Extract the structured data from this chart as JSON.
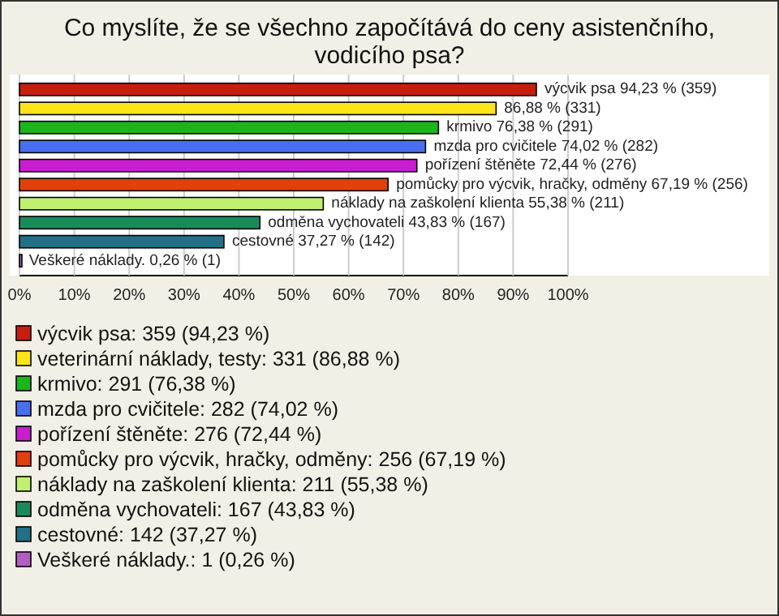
{
  "chart_data": {
    "type": "bar",
    "orientation": "horizontal",
    "title": "Co myslíte, že se všechno započítává do ceny asistenčního, vodicího psa?",
    "categories": [
      null,
      null,
      null,
      null,
      null,
      null,
      null,
      null,
      null,
      null
    ],
    "series": [
      {
        "name": "výcvik psa: 359 (94,23 %)",
        "color": "#c81e0e",
        "values": [
          94.23,
          null,
          null,
          null,
          null,
          null,
          null,
          null,
          null,
          null
        ],
        "value_labels": [
          "výcvik psa 94,23 % (359)",
          null,
          null,
          null,
          null,
          null,
          null,
          null,
          null,
          null
        ]
      },
      {
        "name": "veterinární náklady, testy: 331 (86,88 %)",
        "color": "#ffe41a",
        "values": [
          null,
          86.88,
          null,
          null,
          null,
          null,
          null,
          null,
          null,
          null
        ],
        "value_labels": [
          null,
          "86,88 % (331)",
          null,
          null,
          null,
          null,
          null,
          null,
          null,
          null
        ]
      },
      {
        "name": "krmivo: 291 (76,38 %)",
        "color": "#1cb51c",
        "values": [
          null,
          null,
          76.38,
          null,
          null,
          null,
          null,
          null,
          null,
          null
        ],
        "value_labels": [
          null,
          null,
          "krmivo 76,38 % (291)",
          null,
          null,
          null,
          null,
          null,
          null,
          null
        ]
      },
      {
        "name": "mzda pro cvičitele: 282 (74,02 %)",
        "color": "#4a6ef0",
        "values": [
          null,
          null,
          null,
          74.02,
          null,
          null,
          null,
          null,
          null,
          null
        ],
        "value_labels": [
          null,
          null,
          null,
          "mzda pro cvičitele 74,02 % (282)",
          null,
          null,
          null,
          null,
          null,
          null
        ]
      },
      {
        "name": "pořízení štěněte: 276 (72,44 %)",
        "color": "#c81ed0",
        "values": [
          null,
          null,
          null,
          null,
          72.44,
          null,
          null,
          null,
          null,
          null
        ],
        "value_labels": [
          null,
          null,
          null,
          null,
          "pořízení štěněte 72,44 % (276)",
          null,
          null,
          null,
          null,
          null
        ]
      },
      {
        "name": "pomůcky pro výcvik, hračky, odměny: 256 (67,19 %)",
        "color": "#e0400a",
        "values": [
          null,
          null,
          null,
          null,
          null,
          67.19,
          null,
          null,
          null,
          null
        ],
        "value_labels": [
          null,
          null,
          null,
          null,
          null,
          "pomůcky pro výcvik, hračky, odměny 67,19 % (256)",
          null,
          null,
          null,
          null
        ]
      },
      {
        "name": "náklady na zaškolení klienta: 211 (55,38 %)",
        "color": "#c0f070",
        "values": [
          null,
          null,
          null,
          null,
          null,
          null,
          55.38,
          null,
          null,
          null
        ],
        "value_labels": [
          null,
          null,
          null,
          null,
          null,
          null,
          "náklady na zaškolení klienta 55,38 % (211)",
          null,
          null,
          null
        ]
      },
      {
        "name": "odměna vychovateli: 167 (43,83 %)",
        "color": "#1a8a5a",
        "values": [
          null,
          null,
          null,
          null,
          null,
          null,
          null,
          43.83,
          null,
          null
        ],
        "value_labels": [
          null,
          null,
          null,
          null,
          null,
          null,
          null,
          "odměna vychovateli 43,83 % (167)",
          null,
          null
        ]
      },
      {
        "name": "cestovné: 142 (37,27 %)",
        "color": "#1f7088",
        "values": [
          null,
          null,
          null,
          null,
          null,
          null,
          null,
          null,
          37.27,
          null
        ],
        "value_labels": [
          null,
          null,
          null,
          null,
          null,
          null,
          null,
          null,
          "cestovné 37,27 % (142)",
          null
        ]
      },
      {
        "name": "Veškeré náklady.: 1 (0,26 %)",
        "color": "#b060c0",
        "values": [
          null,
          null,
          null,
          null,
          null,
          null,
          null,
          null,
          null,
          0.26
        ],
        "value_labels": [
          null,
          null,
          null,
          null,
          null,
          null,
          null,
          null,
          null,
          "Veškeré náklady. 0,26 % (1)"
        ]
      }
    ],
    "xlim": [
      0,
      100
    ],
    "xticks": [
      {
        "value": 0,
        "label": "0%"
      },
      {
        "value": 10,
        "label": "10%"
      },
      {
        "value": 20,
        "label": "20%"
      },
      {
        "value": 30,
        "label": "30%"
      },
      {
        "value": 40,
        "label": "40%"
      },
      {
        "value": 50,
        "label": "50%"
      },
      {
        "value": 60,
        "label": "60%"
      },
      {
        "value": 70,
        "label": "70%"
      },
      {
        "value": 80,
        "label": "80%"
      },
      {
        "value": 90,
        "label": "90%"
      },
      {
        "value": 100,
        "label": "100%"
      }
    ],
    "grid": "x",
    "legend": "bottom"
  }
}
